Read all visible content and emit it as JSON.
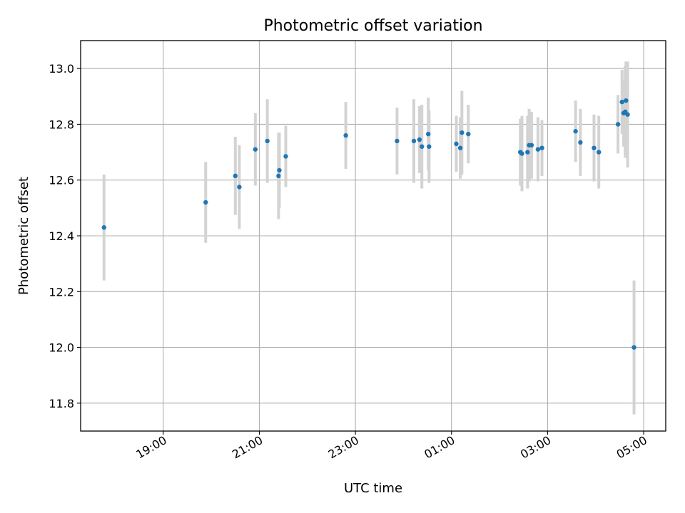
{
  "chart_data": {
    "type": "scatter",
    "title": "Photometric offset variation",
    "xlabel": "UTC time",
    "ylabel": "Photometric offset",
    "xaxis_is_time": true,
    "xlim_hours": [
      17.28,
      29.46
    ],
    "ylim": [
      11.7,
      13.1
    ],
    "x_ticks": [
      {
        "hour": 19,
        "label": "19:00"
      },
      {
        "hour": 21,
        "label": "21:00"
      },
      {
        "hour": 23,
        "label": "23:00"
      },
      {
        "hour": 25,
        "label": "01:00"
      },
      {
        "hour": 27,
        "label": "03:00"
      },
      {
        "hour": 29,
        "label": "05:00"
      }
    ],
    "y_ticks": [
      {
        "value": 11.8,
        "label": "11.8"
      },
      {
        "value": 12.0,
        "label": "12.0"
      },
      {
        "value": 12.2,
        "label": "12.2"
      },
      {
        "value": 12.4,
        "label": "12.4"
      },
      {
        "value": 12.6,
        "label": "12.6"
      },
      {
        "value": 12.8,
        "label": "12.8"
      },
      {
        "value": 13.0,
        "label": "13.0"
      }
    ],
    "grid": true,
    "marker_color": "#1f77b4",
    "errorbar_color": "#d3d3d3",
    "points": [
      {
        "t": "17:46",
        "y": 12.43,
        "err": 0.19
      },
      {
        "t": "19:53",
        "y": 12.52,
        "err": 0.145
      },
      {
        "t": "20:30",
        "y": 12.615,
        "err": 0.14
      },
      {
        "t": "20:35",
        "y": 12.575,
        "err": 0.15
      },
      {
        "t": "20:55",
        "y": 12.71,
        "err": 0.13
      },
      {
        "t": "21:10",
        "y": 12.74,
        "err": 0.15
      },
      {
        "t": "21:24",
        "y": 12.615,
        "err": 0.155
      },
      {
        "t": "21:25",
        "y": 12.635,
        "err": 0.135
      },
      {
        "t": "21:33",
        "y": 12.685,
        "err": 0.11
      },
      {
        "t": "22:48",
        "y": 12.76,
        "err": 0.12
      },
      {
        "t": "23:52",
        "y": 12.74,
        "err": 0.12
      },
      {
        "t": "00:13",
        "y": 12.74,
        "err": 0.15
      },
      {
        "t": "00:20",
        "y": 12.745,
        "err": 0.12
      },
      {
        "t": "00:23",
        "y": 12.72,
        "err": 0.15
      },
      {
        "t": "00:31",
        "y": 12.765,
        "err": 0.13
      },
      {
        "t": "00:32",
        "y": 12.72,
        "err": 0.13
      },
      {
        "t": "01:06",
        "y": 12.73,
        "err": 0.1
      },
      {
        "t": "01:11",
        "y": 12.715,
        "err": 0.11
      },
      {
        "t": "01:13",
        "y": 12.77,
        "err": 0.15
      },
      {
        "t": "01:21",
        "y": 12.765,
        "err": 0.105
      },
      {
        "t": "02:26",
        "y": 12.7,
        "err": 0.12
      },
      {
        "t": "02:28",
        "y": 12.695,
        "err": 0.135
      },
      {
        "t": "02:35",
        "y": 12.7,
        "err": 0.13
      },
      {
        "t": "02:37",
        "y": 12.725,
        "err": 0.13
      },
      {
        "t": "02:40",
        "y": 12.725,
        "err": 0.12
      },
      {
        "t": "02:48",
        "y": 12.71,
        "err": 0.115
      },
      {
        "t": "02:53",
        "y": 12.715,
        "err": 0.1
      },
      {
        "t": "03:35",
        "y": 12.775,
        "err": 0.11
      },
      {
        "t": "03:41",
        "y": 12.735,
        "err": 0.12
      },
      {
        "t": "03:58",
        "y": 12.715,
        "err": 0.12
      },
      {
        "t": "04:04",
        "y": 12.7,
        "err": 0.13
      },
      {
        "t": "04:28",
        "y": 12.8,
        "err": 0.105
      },
      {
        "t": "04:33",
        "y": 12.88,
        "err": 0.115
      },
      {
        "t": "04:35",
        "y": 12.84,
        "err": 0.12
      },
      {
        "t": "04:37",
        "y": 12.845,
        "err": 0.165
      },
      {
        "t": "04:38",
        "y": 12.885,
        "err": 0.14
      },
      {
        "t": "04:40",
        "y": 12.835,
        "err": 0.19
      },
      {
        "t": "04:48",
        "y": 12.0,
        "err": 0.24
      }
    ]
  }
}
